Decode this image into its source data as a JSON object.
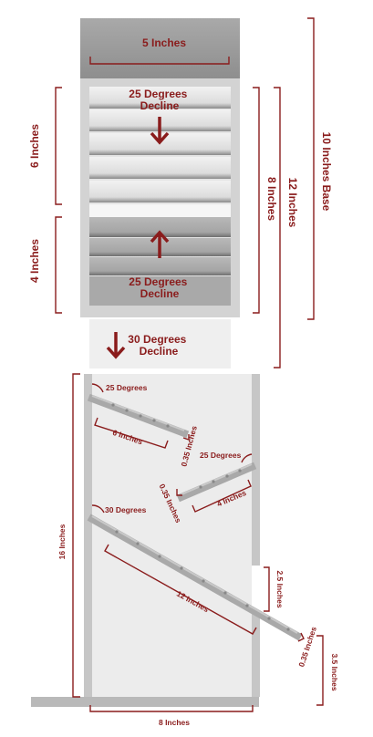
{
  "top": {
    "width": "5 Inches",
    "upper_decline": "25 Degrees\nDecline",
    "lower_decline": "25 Degrees\nDecline",
    "bottom_decline": "30 Degrees\nDecline",
    "left_upper": "6 Inches",
    "left_lower": "4 Inches",
    "right_inner": "8 Inches",
    "right_mid": "12 Inches",
    "right_outer": "10 Inches Base"
  },
  "side": {
    "height": "16 Inches",
    "base": "8 Inches",
    "angle1": "25 Degrees",
    "angle2": "25 Degrees",
    "angle3": "30 Degrees",
    "len1": "6 Inches",
    "len2": "4 Inches",
    "len3": "12 Inches",
    "thk1": "0.35 Inches",
    "thk2": "0.35 Inches",
    "thk3": "0.35 Inches",
    "gap": "2.5 Inches",
    "bottom_right": "3.5 Inches"
  },
  "colors": {
    "accent": "#8a1c1c",
    "panel": "#e9e9e9",
    "dark": "#9a9a9a",
    "frame": "#c8c8c8"
  }
}
